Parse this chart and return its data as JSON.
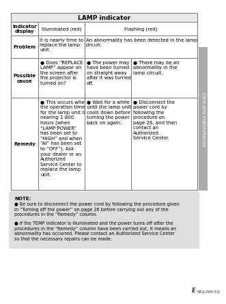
{
  "title": "LAMP indicator",
  "note_title": "NOTE:",
  "note_bullets": [
    "Be sure to disconnect the power cord by following the procedure given\nin “Turning off the power” on page 26 before carrying out any of the\nprocedures in the “Remedy” column.",
    "If the TEMP indicator is illuminated and the power turns off after the\nprocedures in the “Remedy” column have been carried out, it means an\nabnormality has occurred. Please contact an Authorized Service Center\nso that the necessary repairs can be made."
  ],
  "footer_prefix": "E",
  "footer_suffix": "NGLISH-53",
  "sidebar_text": "Care and maintenance",
  "bg_color": "#ffffff",
  "table_border_color": "#777777",
  "note_bg": "#dedede",
  "sidebar_bg": "#aaaaaa",
  "title_bg": "#e8e8e8",
  "font_size": 5.0,
  "header_font_size": 6.0,
  "title_font_size": 6.5
}
